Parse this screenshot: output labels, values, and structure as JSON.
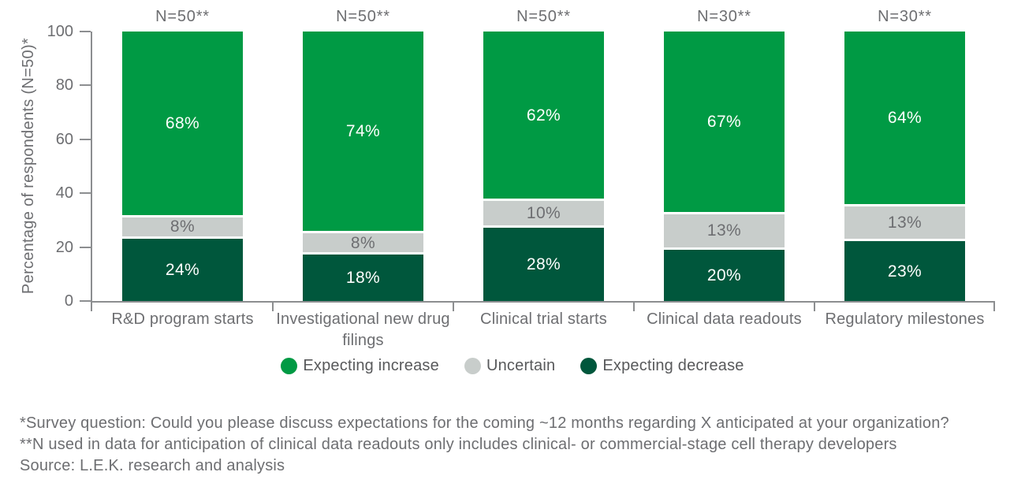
{
  "chart_data": {
    "type": "bar",
    "stacked": true,
    "ylabel": "Percentage of respondents (N=50)*",
    "ylim": [
      0,
      100
    ],
    "yticks": [
      0,
      20,
      40,
      60,
      80,
      100
    ],
    "grid": false,
    "legend_position": "bottom",
    "categories": [
      "R&D program starts",
      "Investigational new drug filings",
      "Clinical trial starts",
      "Clinical data readouts",
      "Regulatory milestones"
    ],
    "n_labels": [
      "N=50**",
      "N=50**",
      "N=50**",
      "N=30**",
      "N=30**"
    ],
    "series": [
      {
        "name": "Expecting decrease",
        "color": "#00573C",
        "label_color": "#FFFFFF",
        "values": [
          24,
          18,
          28,
          20,
          23
        ]
      },
      {
        "name": "Uncertain",
        "color": "#C8CDCB",
        "label_color": "#6D6E71",
        "values": [
          8,
          8,
          10,
          13,
          13
        ]
      },
      {
        "name": "Expecting increase",
        "color": "#009A44",
        "label_color": "#FFFFFF",
        "values": [
          68,
          74,
          62,
          67,
          64
        ]
      }
    ],
    "legend": [
      "Expecting increase",
      "Uncertain",
      "Expecting decrease"
    ]
  },
  "colors": {
    "expecting_increase": "#009A44",
    "uncertain": "#C8CDCB",
    "expecting_decrease": "#00573C",
    "axis": "#8C8E90",
    "text": "#6D6E71",
    "background": "#FFFFFF"
  },
  "footnotes": [
    "*Survey question: Could you please discuss expectations for the coming ~12 months regarding X anticipated at your organization?",
    "**N used in data for anticipation of clinical data readouts only includes clinical- or commercial-stage cell therapy developers",
    "Source: L.E.K. research and analysis"
  ]
}
